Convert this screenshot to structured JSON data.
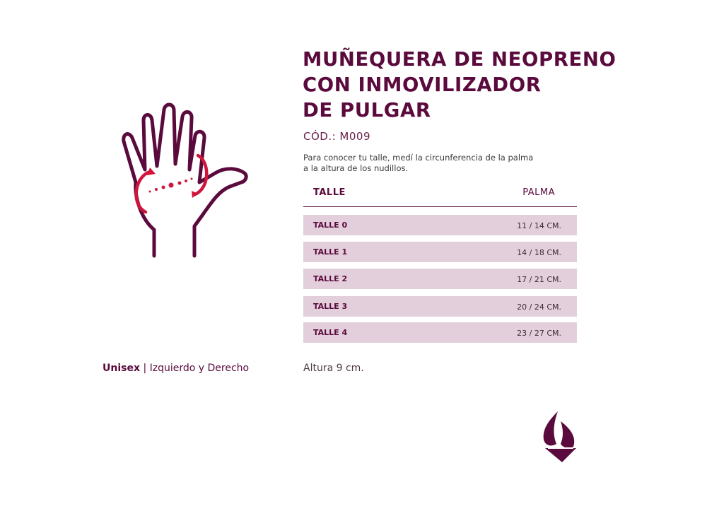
{
  "product": {
    "title_lines": [
      "MUÑEQUERA DE NEOPRENO",
      "CON INMOVILIZADOR",
      "DE PULGAR"
    ],
    "code": "CÓD.: M009"
  },
  "instructions": {
    "lines": [
      "Para conocer tu talle, medí la circunferencia de la palma",
      "a la altura de los nudillos."
    ]
  },
  "size_table": {
    "header_size": "TALLE",
    "header_palm": "PALMA",
    "rows": [
      {
        "size": "TALLE 0",
        "palm": "11 / 14 CM."
      },
      {
        "size": "TALLE 1",
        "palm": "14 / 18 CM."
      },
      {
        "size": "TALLE 2",
        "palm": "17 / 21 CM."
      },
      {
        "size": "TALLE 3",
        "palm": "20 / 24 CM."
      },
      {
        "size": "TALLE 4",
        "palm": "23 / 27 CM."
      }
    ]
  },
  "footer": {
    "unisex": "Unisex",
    "separator": "|",
    "sides": "Izquierdo y Derecho",
    "height": "Altura 9 cm."
  },
  "icons": {
    "hand": "hand-measure-icon",
    "logo": "brand-logo-icon"
  },
  "colors": {
    "primary": "#5a0a3c",
    "accent": "#d0143c",
    "row_bg": "#e2cfdb"
  }
}
